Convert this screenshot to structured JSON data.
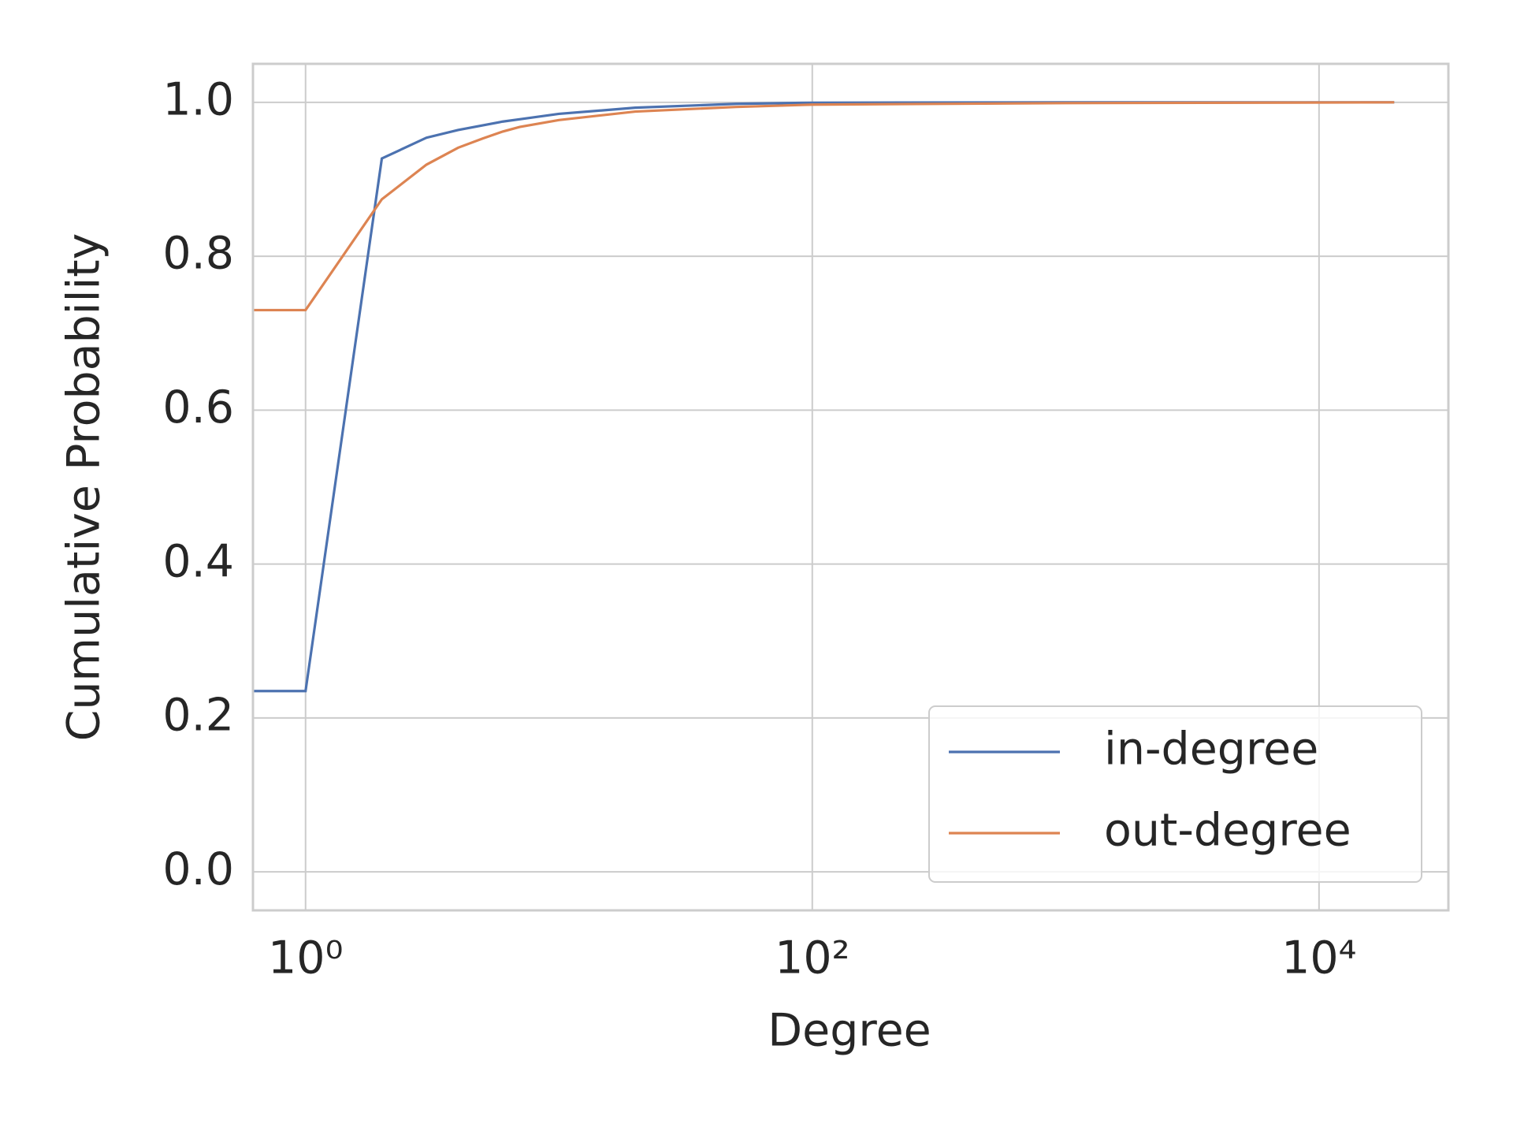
{
  "chart_data": {
    "type": "line",
    "xlabel": "Degree",
    "ylabel": "Cumulative Probability",
    "x": [
      0,
      1,
      2,
      3,
      4,
      5,
      6,
      7,
      10,
      20,
      50,
      100,
      1000,
      19800
    ],
    "series": [
      {
        "name": "in-degree",
        "color": "#4c72b0",
        "values": [
          0.235,
          0.235,
          0.927,
          0.954,
          0.964,
          0.97,
          0.975,
          0.978,
          0.985,
          0.993,
          0.998,
          0.9995,
          1.0,
          1.0
        ]
      },
      {
        "name": "out-degree",
        "color": "#dd8452",
        "values": [
          0.73,
          0.73,
          0.874,
          0.919,
          0.941,
          0.953,
          0.962,
          0.968,
          0.977,
          0.988,
          0.994,
          0.997,
          0.999,
          1.0
        ]
      }
    ],
    "xscale": "log",
    "xlim": [
      0.62,
      32400
    ],
    "xticks": [
      {
        "value": 1,
        "label": "10⁰"
      },
      {
        "value": 100,
        "label": "10²"
      },
      {
        "value": 10000,
        "label": "10⁴"
      }
    ],
    "ylim": [
      -0.05,
      1.05
    ],
    "yticks": [
      {
        "value": 0,
        "label": "0.0"
      },
      {
        "value": 0.2,
        "label": "0.2"
      },
      {
        "value": 0.4,
        "label": "0.4"
      },
      {
        "value": 0.6,
        "label": "0.6"
      },
      {
        "value": 0.8,
        "label": "0.8"
      },
      {
        "value": 1,
        "label": "1.0"
      }
    ],
    "grid": true,
    "legend": "lower right"
  }
}
